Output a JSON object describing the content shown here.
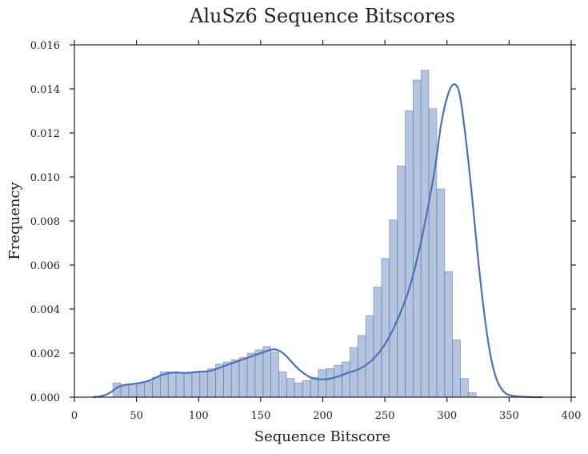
{
  "chart_data": {
    "type": "bar",
    "title": "AluSz6 Sequence Bitscores",
    "xlabel": "Sequence Bitscore",
    "ylabel": "Frequency",
    "xlim": [
      0,
      400
    ],
    "ylim": [
      0,
      0.016
    ],
    "xticks": [
      0,
      50,
      100,
      150,
      200,
      250,
      300,
      350,
      400
    ],
    "yticks": [
      "0.000",
      "0.002",
      "0.004",
      "0.006",
      "0.008",
      "0.010",
      "0.012",
      "0.014",
      "0.016"
    ],
    "grid": false,
    "colors": {
      "bars": "#4c72b0",
      "kde": "#4c72b0"
    },
    "histogram": {
      "bin_start": 31,
      "bin_width": 6.36,
      "values": [
        0.00065,
        0.00055,
        0.0006,
        0.00065,
        0.0007,
        0.0009,
        0.00115,
        0.00115,
        0.0011,
        0.0011,
        0.00115,
        0.00115,
        0.0013,
        0.0015,
        0.0016,
        0.0017,
        0.0018,
        0.002,
        0.00215,
        0.0023,
        0.00205,
        0.00115,
        0.00085,
        0.00065,
        0.00075,
        0.0009,
        0.00125,
        0.0013,
        0.00145,
        0.0016,
        0.00225,
        0.0028,
        0.0037,
        0.005,
        0.0063,
        0.00805,
        0.0105,
        0.013,
        0.0144,
        0.01485,
        0.0131,
        0.00945,
        0.0057,
        0.0026,
        0.00085,
        0.0002
      ]
    },
    "kde": {
      "x": [
        15,
        20,
        25,
        30,
        35,
        40,
        50,
        60,
        70,
        80,
        90,
        100,
        110,
        120,
        130,
        140,
        150,
        160,
        165,
        170,
        180,
        190,
        200,
        210,
        220,
        230,
        240,
        250,
        260,
        270,
        280,
        290,
        295,
        300,
        305,
        310,
        315,
        320,
        325,
        330,
        335,
        340,
        345,
        350,
        360,
        370,
        377
      ],
      "y": [
        0.0,
        3e-05,
        0.0001,
        0.00025,
        0.00045,
        0.00055,
        0.00062,
        0.00075,
        0.001,
        0.00112,
        0.0011,
        0.00115,
        0.0012,
        0.0014,
        0.0016,
        0.0018,
        0.002,
        0.00217,
        0.0021,
        0.0019,
        0.0013,
        0.0009,
        0.0008,
        0.0009,
        0.0011,
        0.0013,
        0.0017,
        0.0024,
        0.0035,
        0.005,
        0.0073,
        0.0103,
        0.0123,
        0.0136,
        0.0142,
        0.0138,
        0.0118,
        0.0092,
        0.0063,
        0.0038,
        0.0019,
        0.0008,
        0.0003,
        0.0001,
        2e-05,
        0.0,
        0.0
      ]
    }
  }
}
